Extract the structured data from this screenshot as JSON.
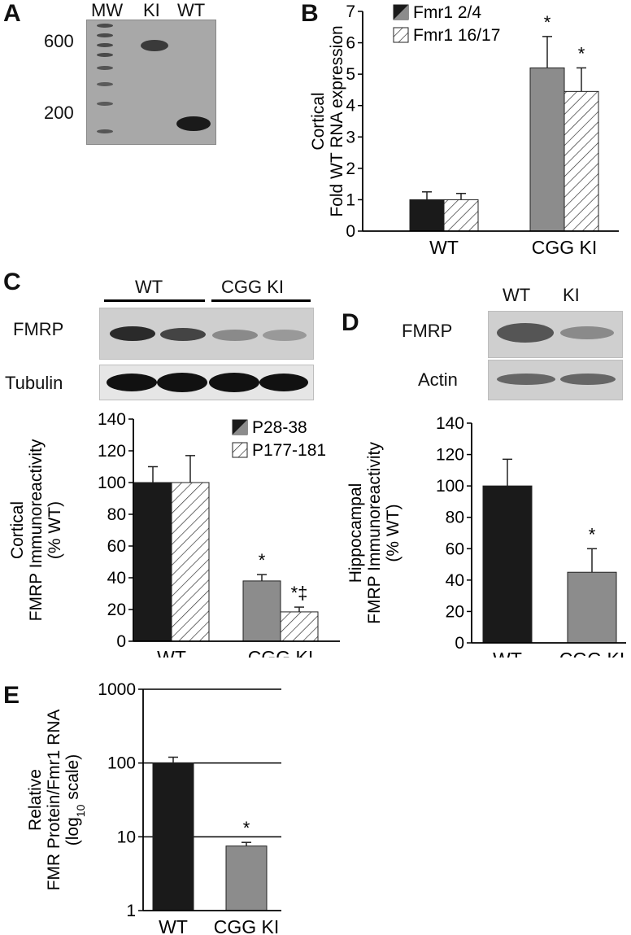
{
  "panels": {
    "a": {
      "letter": "A",
      "lanes": [
        "MW",
        "KI",
        "WT"
      ],
      "size_labels": [
        "600",
        "200"
      ]
    },
    "b": {
      "letter": "B"
    },
    "c": {
      "letter": "C",
      "group_labels": [
        "WT",
        "CGG KI"
      ],
      "rows": [
        "FMRP",
        "Tubulin"
      ]
    },
    "d": {
      "letter": "D",
      "lanes": [
        "WT",
        "KI"
      ],
      "rows": [
        "FMRP",
        "Actin"
      ]
    },
    "e": {
      "letter": "E"
    }
  },
  "colors": {
    "wt_bar": "#1a1a1a",
    "ki_bar": "#8c8c8c",
    "hatch_bar_fill": "#ffffff",
    "axis": "#000000"
  },
  "chart_data": [
    {
      "id": "B",
      "type": "bar",
      "categories": [
        "WT",
        "CGG KI"
      ],
      "ylabel": [
        "Cortical",
        "Fold WT RNA expression"
      ],
      "ylim": [
        0,
        7
      ],
      "yticks": [
        0,
        1,
        2,
        3,
        4,
        5,
        6,
        7
      ],
      "legend": [
        "Fmr1 2/4",
        "Fmr1 16/17"
      ],
      "legend_position": "top-left",
      "series": [
        {
          "name": "Fmr1 2/4",
          "pattern": "solid",
          "values": [
            1.0,
            5.2
          ],
          "errors": [
            0.25,
            1.0
          ],
          "annotations": [
            "",
            "*"
          ]
        },
        {
          "name": "Fmr1 16/17",
          "pattern": "hatch",
          "values": [
            1.0,
            4.45
          ],
          "errors": [
            0.2,
            0.75
          ],
          "annotations": [
            "",
            "*"
          ]
        }
      ]
    },
    {
      "id": "C",
      "type": "bar",
      "categories": [
        "WT",
        "CGG KI"
      ],
      "ylabel": [
        "Cortical",
        "FMRP Immunoreactivity",
        "(% WT)"
      ],
      "ylim": [
        0,
        140
      ],
      "yticks": [
        0,
        20,
        40,
        60,
        80,
        100,
        120,
        140
      ],
      "legend": [
        "P28-38",
        "P177-181"
      ],
      "legend_position": "top-right",
      "series": [
        {
          "name": "P28-38",
          "pattern": "solid",
          "values": [
            100,
            38
          ],
          "errors": [
            10,
            4
          ],
          "annotations": [
            "",
            "*"
          ]
        },
        {
          "name": "P177-181",
          "pattern": "hatch",
          "values": [
            100,
            18.5
          ],
          "errors": [
            17,
            3
          ],
          "annotations": [
            "",
            "*‡"
          ]
        }
      ]
    },
    {
      "id": "D",
      "type": "bar",
      "categories": [
        "WT",
        "CGG KI"
      ],
      "ylabel": [
        "Hippocampal",
        "FMRP Immunoreactivity",
        "(% WT)"
      ],
      "ylim": [
        0,
        140
      ],
      "yticks": [
        0,
        20,
        40,
        60,
        80,
        100,
        120,
        140
      ],
      "series": [
        {
          "values": [
            100,
            45
          ],
          "errors": [
            17,
            15
          ],
          "annotations": [
            "",
            "*"
          ]
        }
      ]
    },
    {
      "id": "E",
      "type": "bar",
      "scale": "log10",
      "categories": [
        "WT",
        "CGG KI"
      ],
      "ylabel": [
        "Relative",
        "FMR Protein/Fmr1 RNA",
        "(log",
        "10",
        " scale)"
      ],
      "ylim": [
        1,
        1000
      ],
      "yticks": [
        1,
        10,
        100,
        1000
      ],
      "grid": true,
      "series": [
        {
          "values": [
            100,
            7.5
          ],
          "errors": [
            20,
            0.9
          ],
          "annotations": [
            "",
            "*"
          ]
        }
      ]
    }
  ]
}
